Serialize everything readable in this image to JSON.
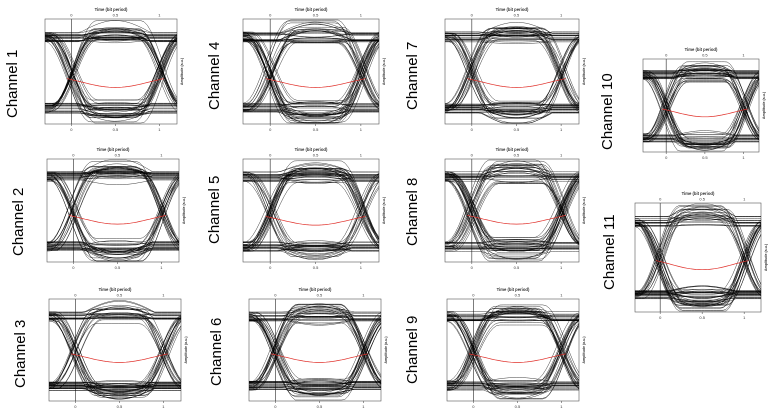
{
  "figure": {
    "eye_color": "#000000",
    "crossing_trace_color": "#e0302a",
    "grid": false
  },
  "chart_data": [
    {
      "type": "line",
      "panel_label": "Channel 1",
      "title": "Time (bit period)",
      "ylabel": "Amplitude (a.u.)",
      "x_ticks": [
        "0",
        "0.5",
        "1"
      ],
      "xlim": [
        -0.3,
        1.2
      ],
      "eye_opening_width_ui": 0.62,
      "center_trace_level": 0.58
    },
    {
      "type": "line",
      "panel_label": "Channel 2",
      "title": "Time (bit period)",
      "ylabel": "Amplitude (a.u.)",
      "x_ticks": [
        "0",
        "0.5",
        "1"
      ],
      "xlim": [
        -0.3,
        1.2
      ],
      "eye_opening_width_ui": 0.6,
      "center_trace_level": 0.56
    },
    {
      "type": "line",
      "panel_label": "Channel 3",
      "title": "Time (bit period)",
      "ylabel": "Amplitude (a.u.)",
      "x_ticks": [
        "0",
        "0.5",
        "1"
      ],
      "xlim": [
        -0.3,
        1.2
      ],
      "eye_opening_width_ui": 0.58,
      "center_trace_level": 0.55
    },
    {
      "type": "line",
      "panel_label": "Channel 4",
      "title": "Time (bit period)",
      "ylabel": "Amplitude (a.u.)",
      "x_ticks": [
        "0",
        "0.5",
        "1"
      ],
      "xlim": [
        -0.3,
        1.2
      ],
      "eye_opening_width_ui": 0.62,
      "center_trace_level": 0.58
    },
    {
      "type": "line",
      "panel_label": "Channel 5",
      "title": "Time (bit period)",
      "ylabel": "Amplitude (a.u.)",
      "x_ticks": [
        "0",
        "0.5",
        "1"
      ],
      "xlim": [
        -0.3,
        1.2
      ],
      "eye_opening_width_ui": 0.6,
      "center_trace_level": 0.57
    },
    {
      "type": "line",
      "panel_label": "Channel 6",
      "title": "Time (bit period)",
      "ylabel": "Amplitude (a.u.)",
      "x_ticks": [
        "0",
        "0.5",
        "1"
      ],
      "xlim": [
        -0.3,
        1.2
      ],
      "eye_opening_width_ui": 0.58,
      "center_trace_level": 0.55
    },
    {
      "type": "line",
      "panel_label": "Channel 7",
      "title": "Time (bit period)",
      "ylabel": "Amplitude (a.u.)",
      "x_ticks": [
        "0",
        "0.5",
        "1"
      ],
      "xlim": [
        -0.3,
        1.2
      ],
      "eye_opening_width_ui": 0.61,
      "center_trace_level": 0.58
    },
    {
      "type": "line",
      "panel_label": "Channel 8",
      "title": "Time (bit period)",
      "ylabel": "Amplitude (a.u.)",
      "x_ticks": [
        "0",
        "0.5",
        "1"
      ],
      "xlim": [
        -0.3,
        1.2
      ],
      "eye_opening_width_ui": 0.6,
      "center_trace_level": 0.56
    },
    {
      "type": "line",
      "panel_label": "Channel 9",
      "title": "Time (bit period)",
      "ylabel": "Amplitude (a.u.)",
      "x_ticks": [
        "0",
        "0.5",
        "1"
      ],
      "xlim": [
        -0.3,
        1.2
      ],
      "eye_opening_width_ui": 0.58,
      "center_trace_level": 0.55
    },
    {
      "type": "line",
      "panel_label": "Channel 10",
      "title": "Time (bit period)",
      "ylabel": "Amplitude (a.u.)",
      "x_ticks": [
        "0",
        "0.5",
        "1"
      ],
      "xlim": [
        -0.3,
        1.2
      ],
      "eye_opening_width_ui": 0.6,
      "center_trace_level": 0.55
    },
    {
      "type": "line",
      "panel_label": "Channel 11",
      "title": "Time (bit period)",
      "ylabel": "Amplitude (a.u.)",
      "x_ticks": [
        "0",
        "0.5",
        "1"
      ],
      "xlim": [
        -0.3,
        1.2
      ],
      "eye_opening_width_ui": 0.58,
      "center_trace_level": 0.54
    }
  ]
}
